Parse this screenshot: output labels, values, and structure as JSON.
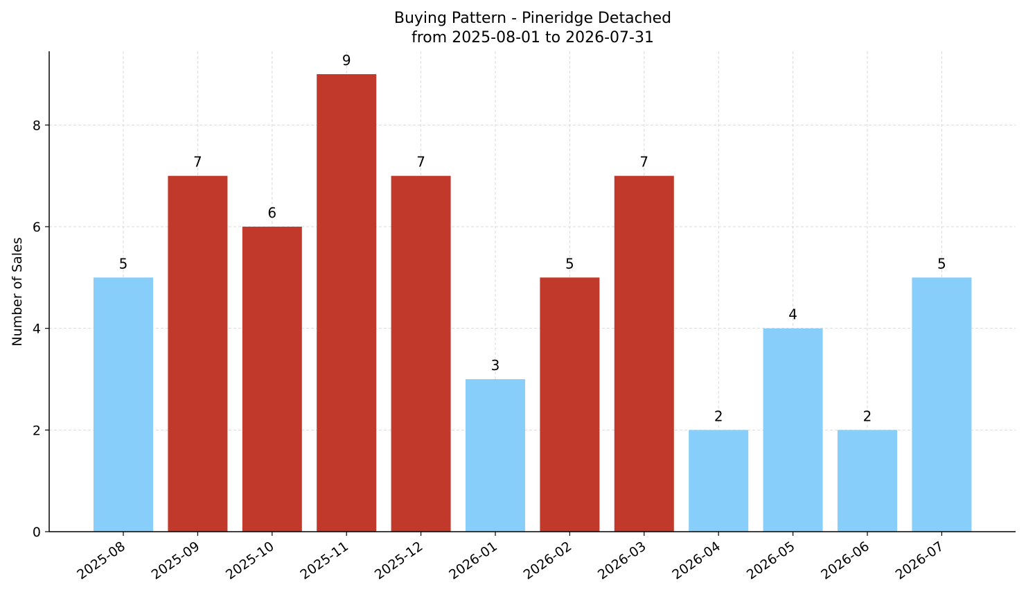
{
  "chart_data": {
    "type": "bar",
    "title_line1": "Buying Pattern - Pineridge Detached",
    "title_line2": "from 2025-08-01 to 2026-07-31",
    "xlabel": "",
    "ylabel": "Number of Sales",
    "categories": [
      "2025-08",
      "2025-09",
      "2025-10",
      "2025-11",
      "2025-12",
      "2026-01",
      "2026-02",
      "2026-03",
      "2026-04",
      "2026-05",
      "2026-06",
      "2026-07"
    ],
    "values": [
      5,
      7,
      6,
      9,
      7,
      3,
      5,
      7,
      2,
      4,
      2,
      5
    ],
    "bar_colors": [
      "#87CEFA",
      "#C0392B",
      "#C0392B",
      "#C0392B",
      "#C0392B",
      "#87CEFA",
      "#C0392B",
      "#C0392B",
      "#87CEFA",
      "#87CEFA",
      "#87CEFA",
      "#87CEFA"
    ],
    "yticks": [
      0,
      2,
      4,
      6,
      8
    ],
    "ylim": [
      0,
      9.45
    ],
    "grid": true,
    "legend": "none"
  }
}
